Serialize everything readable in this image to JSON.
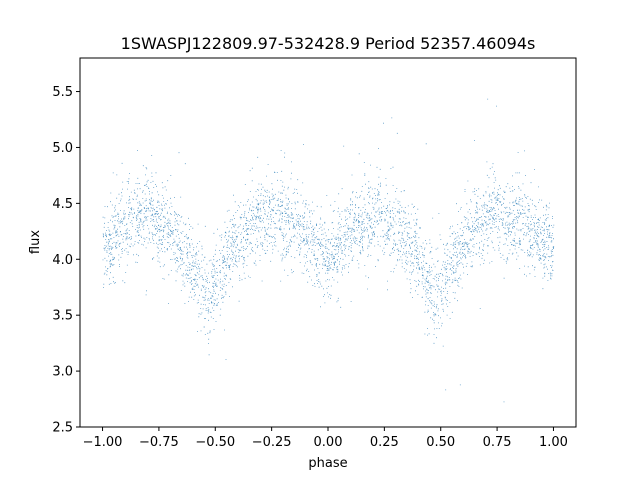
{
  "chart_data": {
    "type": "scatter",
    "title": "1SWASPJ122809.97-532428.9 Period 52357.46094s",
    "xlabel": "phase",
    "ylabel": "flux",
    "xlim": [
      -1.1,
      1.1
    ],
    "ylim": [
      2.5,
      5.8
    ],
    "xticks": [
      -1.0,
      -0.75,
      -0.5,
      -0.25,
      0.0,
      0.25,
      0.5,
      0.75,
      1.0
    ],
    "xtick_labels": [
      "−1.00",
      "−0.75",
      "−0.50",
      "−0.25",
      "0.00",
      "0.25",
      "0.50",
      "0.75",
      "1.00"
    ],
    "yticks": [
      2.5,
      3.0,
      3.5,
      4.0,
      4.5,
      5.0,
      5.5
    ],
    "ytick_labels": [
      "2.5",
      "3.0",
      "3.5",
      "4.0",
      "4.5",
      "5.0",
      "5.5"
    ],
    "grid": false,
    "marker_color": "#1f77b4",
    "series": [
      {
        "x": [
          -1.0,
          -0.9,
          -0.8,
          -0.7,
          -0.6,
          -0.53,
          -0.45,
          -0.35,
          -0.25,
          -0.15,
          -0.05,
          0.0,
          0.05,
          0.1,
          0.2,
          0.3,
          0.4,
          0.47,
          0.55,
          0.65,
          0.75,
          0.85,
          0.95,
          1.0
        ],
        "y": [
          4.1,
          4.3,
          4.42,
          4.25,
          3.95,
          3.65,
          4.0,
          4.3,
          4.42,
          4.3,
          4.1,
          4.03,
          4.1,
          4.25,
          4.38,
          4.3,
          4.0,
          3.65,
          4.0,
          4.3,
          4.42,
          4.32,
          4.15,
          4.08
        ],
        "scatter_sigma": 0.18,
        "points_per_phase": 20000
      }
    ]
  }
}
